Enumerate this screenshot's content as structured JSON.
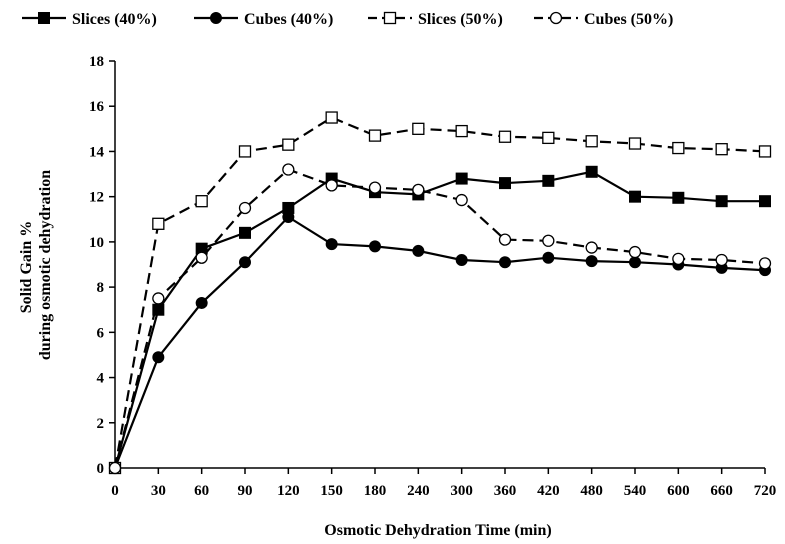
{
  "chart_data": {
    "type": "line",
    "categories": [
      "0",
      "30",
      "60",
      "90",
      "120",
      "150",
      "180",
      "240",
      "300",
      "360",
      "420",
      "480",
      "540",
      "600",
      "660",
      "720"
    ],
    "x_positions": [
      0,
      30,
      60,
      90,
      120,
      150,
      180,
      210,
      240,
      270,
      300,
      330,
      360,
      390,
      420,
      450
    ],
    "xlabel": "Osmotic Dehydration Time (min)",
    "ylabel_lines": [
      "Solid Gain %",
      "during osmotic dehydration"
    ],
    "ylim": [
      0,
      18
    ],
    "yticks": [
      "0",
      "2",
      "4",
      "6",
      "8",
      "10",
      "12",
      "14",
      "16",
      "18"
    ],
    "grid": false,
    "legend_position": "top",
    "series": [
      {
        "name": "Slices (40%)",
        "marker": "filled-square",
        "line": "solid",
        "values": [
          0,
          7.0,
          9.7,
          10.4,
          11.5,
          12.8,
          12.2,
          12.1,
          12.8,
          12.6,
          12.7,
          13.1,
          12.0,
          11.95,
          11.8,
          11.8
        ]
      },
      {
        "name": "Cubes (40%)",
        "marker": "filled-circle",
        "line": "solid",
        "values": [
          0,
          4.9,
          7.3,
          9.1,
          11.1,
          9.9,
          9.8,
          9.6,
          9.2,
          9.1,
          9.3,
          9.15,
          9.1,
          9.0,
          8.85,
          8.75
        ]
      },
      {
        "name": "Slices (50%)",
        "marker": "open-square",
        "line": "dashed",
        "values": [
          0,
          10.8,
          11.8,
          14.0,
          14.3,
          15.5,
          14.7,
          15.0,
          14.9,
          14.65,
          14.6,
          14.45,
          14.35,
          14.15,
          14.1,
          14.0
        ]
      },
      {
        "name": "Cubes (50%)",
        "marker": "open-circle",
        "line": "dashed",
        "values": [
          0,
          7.5,
          9.3,
          11.5,
          13.2,
          12.5,
          12.4,
          12.3,
          11.85,
          10.1,
          10.05,
          9.75,
          9.55,
          9.25,
          9.2,
          9.05
        ]
      }
    ]
  }
}
